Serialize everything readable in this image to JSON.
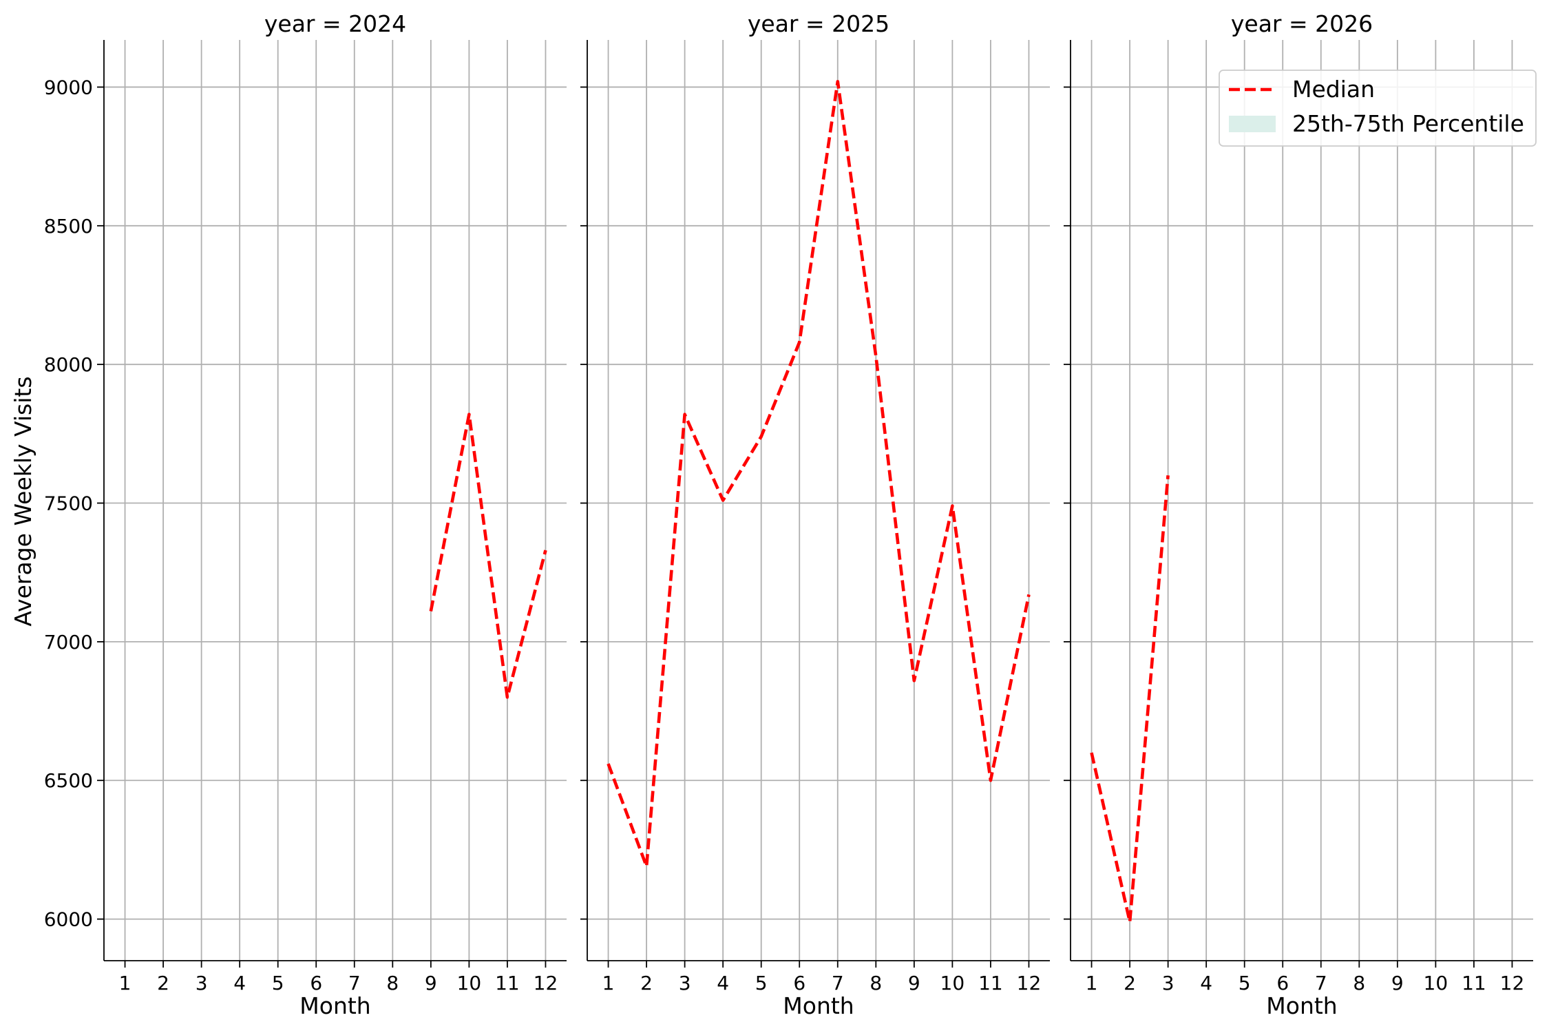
{
  "chart_data": {
    "type": "line",
    "ylabel": "Average Weekly Visits",
    "xlabel": "Month",
    "ylim": [
      5850,
      9170
    ],
    "yticks": [
      6000,
      6500,
      7000,
      7500,
      8000,
      8500,
      9000
    ],
    "xlim": [
      0.45,
      12.55
    ],
    "xticks": [
      1,
      2,
      3,
      4,
      5,
      6,
      7,
      8,
      9,
      10,
      11,
      12
    ],
    "grid": true,
    "legend": {
      "placement": "top-right",
      "panel": 2,
      "entries": [
        {
          "label": "Median",
          "style": "dashed-line",
          "color": "#ff0000"
        },
        {
          "label": "25th-75th Percentile",
          "style": "patch",
          "color": "#dbefea"
        }
      ]
    },
    "series_color": "#ff0000",
    "panels": [
      {
        "title": "year = 2024",
        "x": [
          9,
          10,
          11,
          12
        ],
        "median": [
          7110,
          7820,
          6800,
          7330
        ]
      },
      {
        "title": "year = 2025",
        "x": [
          1,
          2,
          3,
          4,
          5,
          6,
          7,
          8,
          9,
          10,
          11,
          12
        ],
        "median": [
          6560,
          6190,
          7820,
          7510,
          7740,
          8080,
          9020,
          8030,
          6860,
          7490,
          6500,
          7170
        ]
      },
      {
        "title": "year = 2026",
        "x": [
          1,
          2,
          3
        ],
        "median": [
          6600,
          5990,
          7600
        ]
      }
    ]
  }
}
